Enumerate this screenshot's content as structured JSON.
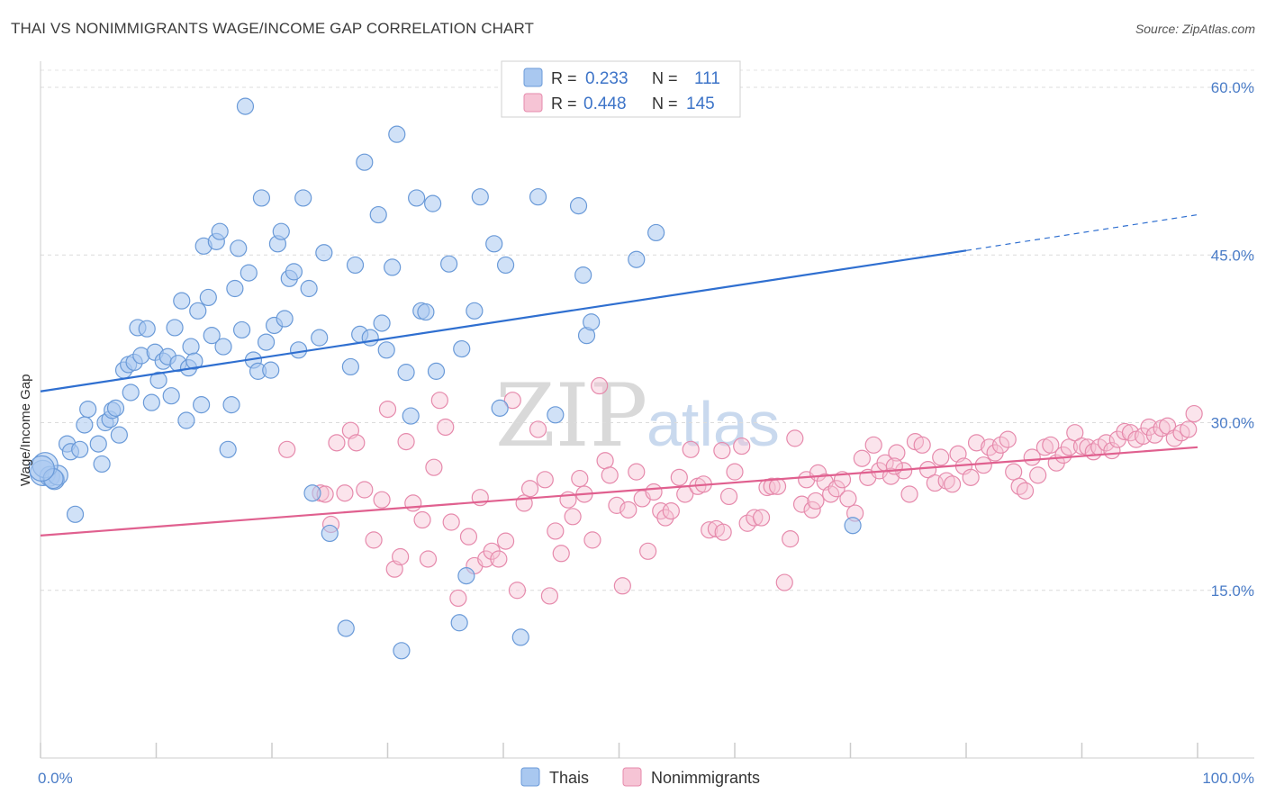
{
  "title": "THAI VS NONIMMIGRANTS WAGE/INCOME GAP CORRELATION CHART",
  "source": "Source: ZipAtlas.com",
  "watermark": {
    "zip": "ZIP",
    "atlas": "atlas"
  },
  "colors": {
    "blue": "#2f6fd0",
    "blue_fill": "#a9c8f0",
    "blue_stroke": "#6a9ad8",
    "pink": "#e0608f",
    "pink_fill": "#f6c4d5",
    "pink_stroke": "#e68aac",
    "grid": "#d9d9d9",
    "tick_text": "#4a7cc7"
  },
  "legend_top": {
    "r_label": "R =",
    "n_label": "N =",
    "rows": [
      {
        "series": "Thais",
        "r": "0.233",
        "n": "111"
      },
      {
        "series": "Nonimmigrants",
        "r": "0.448",
        "n": "145"
      }
    ]
  },
  "chart_data": {
    "type": "scatter",
    "title": "THAI VS NONIMMIGRANTS WAGE/INCOME GAP CORRELATION CHART",
    "xlabel": "",
    "ylabel": "Wage/Income Gap",
    "xlim": [
      0,
      100
    ],
    "ylim": [
      0,
      63
    ],
    "x_tick_labels": [
      "0.0%",
      "100.0%"
    ],
    "y_ticks": [
      15,
      30,
      45,
      60
    ],
    "y_tick_labels": [
      "15.0%",
      "30.0%",
      "45.0%",
      "60.0%"
    ],
    "legend": [
      "Thais",
      "Nonimmigrants"
    ],
    "series": [
      {
        "name": "Thais",
        "r": 0.233,
        "n": 111,
        "trend": {
          "x0": 0,
          "y0": 32.8,
          "x1": 80,
          "y1": 45.4,
          "dash_to_x": 100,
          "dash_to_y": 48.6
        },
        "points": [
          [
            0.2,
            25.5
          ],
          [
            0.8,
            25.2
          ],
          [
            1.2,
            24.9
          ],
          [
            1.5,
            25.3
          ],
          [
            0.4,
            26.2
          ],
          [
            1.1,
            25.0
          ],
          [
            3,
            21.8
          ],
          [
            2.3,
            28.1
          ],
          [
            2.6,
            27.4
          ],
          [
            3.4,
            27.6
          ],
          [
            3.8,
            29.8
          ],
          [
            4.1,
            31.2
          ],
          [
            5,
            28.1
          ],
          [
            5.3,
            26.3
          ],
          [
            5.6,
            30.0
          ],
          [
            6.0,
            30.3
          ],
          [
            6.2,
            31.1
          ],
          [
            6.5,
            31.3
          ],
          [
            6.8,
            28.9
          ],
          [
            7.2,
            34.7
          ],
          [
            7.6,
            35.2
          ],
          [
            7.8,
            32.7
          ],
          [
            8.1,
            35.4
          ],
          [
            8.4,
            38.5
          ],
          [
            8.7,
            36.0
          ],
          [
            9.2,
            38.4
          ],
          [
            9.6,
            31.8
          ],
          [
            9.9,
            36.3
          ],
          [
            10.2,
            33.8
          ],
          [
            10.6,
            35.5
          ],
          [
            11,
            35.9
          ],
          [
            11.3,
            32.4
          ],
          [
            11.6,
            38.5
          ],
          [
            11.9,
            35.3
          ],
          [
            12.2,
            40.9
          ],
          [
            12.6,
            30.2
          ],
          [
            12.8,
            34.9
          ],
          [
            13.0,
            36.8
          ],
          [
            13.3,
            35.5
          ],
          [
            13.6,
            40.0
          ],
          [
            13.9,
            31.6
          ],
          [
            14.1,
            45.8
          ],
          [
            14.5,
            41.2
          ],
          [
            14.8,
            37.8
          ],
          [
            15.2,
            46.2
          ],
          [
            15.5,
            47.1
          ],
          [
            15.8,
            36.8
          ],
          [
            16.2,
            27.6
          ],
          [
            16.5,
            31.6
          ],
          [
            16.8,
            42.0
          ],
          [
            17.1,
            45.6
          ],
          [
            17.4,
            38.3
          ],
          [
            17.7,
            58.3
          ],
          [
            18.0,
            43.4
          ],
          [
            18.4,
            35.6
          ],
          [
            18.8,
            34.6
          ],
          [
            19.1,
            50.1
          ],
          [
            19.5,
            37.2
          ],
          [
            19.9,
            34.7
          ],
          [
            20.2,
            38.7
          ],
          [
            20.5,
            46.0
          ],
          [
            20.8,
            47.1
          ],
          [
            21.1,
            39.3
          ],
          [
            21.5,
            42.9
          ],
          [
            21.9,
            43.5
          ],
          [
            22.3,
            36.5
          ],
          [
            22.7,
            50.1
          ],
          [
            23.2,
            42.0
          ],
          [
            23.5,
            23.7
          ],
          [
            24.1,
            37.6
          ],
          [
            24.5,
            45.2
          ],
          [
            25.0,
            20.1
          ],
          [
            26.4,
            11.6
          ],
          [
            26.8,
            35.0
          ],
          [
            27.2,
            44.1
          ],
          [
            27.6,
            37.9
          ],
          [
            28.0,
            53.3
          ],
          [
            28.5,
            37.6
          ],
          [
            29.2,
            48.6
          ],
          [
            29.5,
            38.9
          ],
          [
            29.9,
            36.5
          ],
          [
            30.4,
            43.9
          ],
          [
            30.8,
            55.8
          ],
          [
            31.2,
            9.6
          ],
          [
            31.6,
            34.5
          ],
          [
            32.0,
            30.6
          ],
          [
            32.5,
            50.1
          ],
          [
            32.9,
            40.0
          ],
          [
            33.3,
            39.9
          ],
          [
            33.9,
            49.6
          ],
          [
            34.2,
            34.6
          ],
          [
            35.3,
            44.2
          ],
          [
            36.2,
            12.1
          ],
          [
            36.4,
            36.6
          ],
          [
            36.8,
            16.3
          ],
          [
            37.5,
            40.0
          ],
          [
            38.0,
            50.2
          ],
          [
            39.2,
            46.0
          ],
          [
            39.7,
            31.3
          ],
          [
            40.2,
            44.1
          ],
          [
            41.5,
            10.8
          ],
          [
            43.0,
            50.2
          ],
          [
            44.5,
            30.7
          ],
          [
            46.5,
            49.4
          ],
          [
            46.9,
            43.2
          ],
          [
            47.2,
            37.8
          ],
          [
            47.6,
            39.0
          ],
          [
            51.5,
            44.6
          ],
          [
            53.2,
            47.0
          ],
          [
            70.2,
            20.8
          ],
          [
            0.1,
            25.9
          ]
        ]
      },
      {
        "name": "Nonimmigrants",
        "r": 0.448,
        "n": 145,
        "trend": {
          "x0": 0,
          "y0": 19.9,
          "x1": 100,
          "y1": 27.8
        },
        "points": [
          [
            21.3,
            27.6
          ],
          [
            24.2,
            23.7
          ],
          [
            24.6,
            23.6
          ],
          [
            25.1,
            20.9
          ],
          [
            25.6,
            28.2
          ],
          [
            26.3,
            23.7
          ],
          [
            26.8,
            29.3
          ],
          [
            27.3,
            28.2
          ],
          [
            28.0,
            24.0
          ],
          [
            28.8,
            19.5
          ],
          [
            29.5,
            23.1
          ],
          [
            30.0,
            31.2
          ],
          [
            30.6,
            16.9
          ],
          [
            31.1,
            18.0
          ],
          [
            31.6,
            28.3
          ],
          [
            32.2,
            22.8
          ],
          [
            33.0,
            21.3
          ],
          [
            33.5,
            17.8
          ],
          [
            34.0,
            26.0
          ],
          [
            34.5,
            32.0
          ],
          [
            35.0,
            29.6
          ],
          [
            35.5,
            21.1
          ],
          [
            36.1,
            14.3
          ],
          [
            37.0,
            19.8
          ],
          [
            37.5,
            17.2
          ],
          [
            38.0,
            23.3
          ],
          [
            38.5,
            17.8
          ],
          [
            39.0,
            18.5
          ],
          [
            39.6,
            17.8
          ],
          [
            40.2,
            19.4
          ],
          [
            40.8,
            32.0
          ],
          [
            41.2,
            15.0
          ],
          [
            41.8,
            22.8
          ],
          [
            42.3,
            24.1
          ],
          [
            43.0,
            29.4
          ],
          [
            43.6,
            24.9
          ],
          [
            44.0,
            14.5
          ],
          [
            44.5,
            20.3
          ],
          [
            45.0,
            18.3
          ],
          [
            45.6,
            23.1
          ],
          [
            46.0,
            21.6
          ],
          [
            46.6,
            25.0
          ],
          [
            47.0,
            23.6
          ],
          [
            47.7,
            19.5
          ],
          [
            48.3,
            33.3
          ],
          [
            48.8,
            26.6
          ],
          [
            49.2,
            25.3
          ],
          [
            49.8,
            22.6
          ],
          [
            50.3,
            15.4
          ],
          [
            50.8,
            22.2
          ],
          [
            51.5,
            25.6
          ],
          [
            52.0,
            23.2
          ],
          [
            52.5,
            18.5
          ],
          [
            53.0,
            23.8
          ],
          [
            53.6,
            22.1
          ],
          [
            54.0,
            21.5
          ],
          [
            54.5,
            22.1
          ],
          [
            55.2,
            25.1
          ],
          [
            55.7,
            23.6
          ],
          [
            56.2,
            27.6
          ],
          [
            56.8,
            24.3
          ],
          [
            57.3,
            24.5
          ],
          [
            57.8,
            20.4
          ],
          [
            58.4,
            20.5
          ],
          [
            58.9,
            27.5
          ],
          [
            59.5,
            23.4
          ],
          [
            60.0,
            25.6
          ],
          [
            60.6,
            27.9
          ],
          [
            61.1,
            21.0
          ],
          [
            61.7,
            21.5
          ],
          [
            62.3,
            21.5
          ],
          [
            62.8,
            24.2
          ],
          [
            63.2,
            24.3
          ],
          [
            63.7,
            24.3
          ],
          [
            64.3,
            15.7
          ],
          [
            64.8,
            19.6
          ],
          [
            65.2,
            28.6
          ],
          [
            65.8,
            22.7
          ],
          [
            66.2,
            24.9
          ],
          [
            66.7,
            22.2
          ],
          [
            67.2,
            25.5
          ],
          [
            67.8,
            24.7
          ],
          [
            68.3,
            23.6
          ],
          [
            68.8,
            24.1
          ],
          [
            69.3,
            24.9
          ],
          [
            69.8,
            23.2
          ],
          [
            70.4,
            21.9
          ],
          [
            71.0,
            26.8
          ],
          [
            71.5,
            25.1
          ],
          [
            72.0,
            28.0
          ],
          [
            72.5,
            25.7
          ],
          [
            73.0,
            26.4
          ],
          [
            73.5,
            25.2
          ],
          [
            74.0,
            27.3
          ],
          [
            74.6,
            25.7
          ],
          [
            75.1,
            23.6
          ],
          [
            75.6,
            28.3
          ],
          [
            76.2,
            28.0
          ],
          [
            76.7,
            25.8
          ],
          [
            77.3,
            24.6
          ],
          [
            77.8,
            26.9
          ],
          [
            78.3,
            24.8
          ],
          [
            78.8,
            24.5
          ],
          [
            79.3,
            27.2
          ],
          [
            79.8,
            26.1
          ],
          [
            80.4,
            25.1
          ],
          [
            80.9,
            28.2
          ],
          [
            81.5,
            26.2
          ],
          [
            82.0,
            27.8
          ],
          [
            82.5,
            27.3
          ],
          [
            83.0,
            28.0
          ],
          [
            83.6,
            28.5
          ],
          [
            84.1,
            25.6
          ],
          [
            84.6,
            24.3
          ],
          [
            85.1,
            23.9
          ],
          [
            85.7,
            26.9
          ],
          [
            86.2,
            25.3
          ],
          [
            86.8,
            27.8
          ],
          [
            87.3,
            28.0
          ],
          [
            87.8,
            26.4
          ],
          [
            88.4,
            27.1
          ],
          [
            88.9,
            27.8
          ],
          [
            89.4,
            29.1
          ],
          [
            90.0,
            27.9
          ],
          [
            90.5,
            27.8
          ],
          [
            91.0,
            27.4
          ],
          [
            91.5,
            27.8
          ],
          [
            92.1,
            28.2
          ],
          [
            92.6,
            27.5
          ],
          [
            93.1,
            28.5
          ],
          [
            93.7,
            29.2
          ],
          [
            94.2,
            29.1
          ],
          [
            94.7,
            28.5
          ],
          [
            95.3,
            28.8
          ],
          [
            95.8,
            29.6
          ],
          [
            96.3,
            28.9
          ],
          [
            96.9,
            29.5
          ],
          [
            97.4,
            29.7
          ],
          [
            98.0,
            28.6
          ],
          [
            98.6,
            29.1
          ],
          [
            99.2,
            29.4
          ],
          [
            99.7,
            30.8
          ],
          [
            59.0,
            20.2
          ],
          [
            67.0,
            23.0
          ],
          [
            73.8,
            26.1
          ]
        ]
      }
    ]
  }
}
